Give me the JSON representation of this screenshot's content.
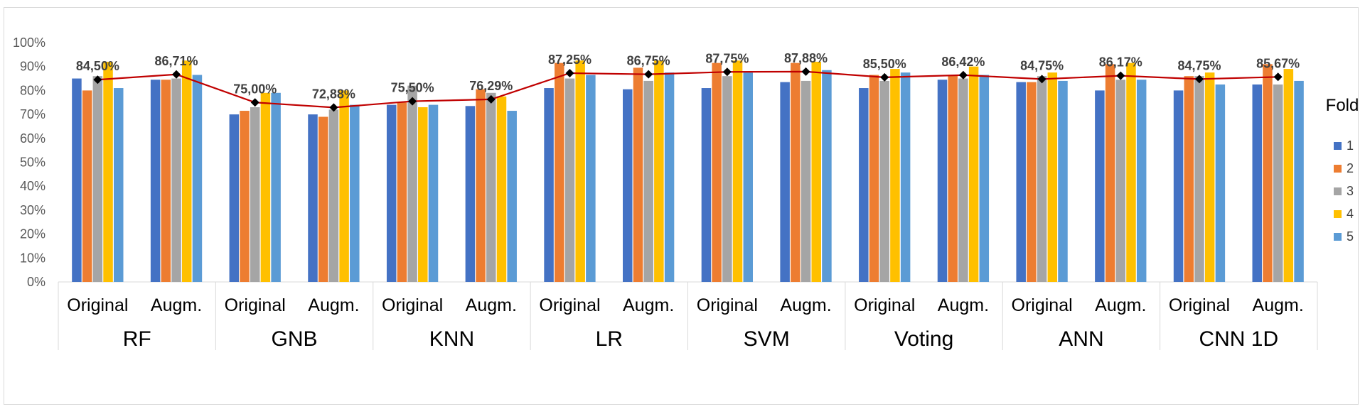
{
  "chart_data": {
    "type": "bar",
    "title": "",
    "xlabel": "",
    "ylabel": "",
    "ylim": [
      0,
      1
    ],
    "yticks": [
      "0%",
      "10%",
      "20%",
      "30%",
      "40%",
      "50%",
      "60%",
      "70%",
      "80%",
      "90%",
      "100%"
    ],
    "grid": false,
    "legend": {
      "title": "Fold",
      "position": "right"
    },
    "groups": [
      {
        "label": "RF",
        "subcategories": [
          "Original",
          "Augm."
        ]
      },
      {
        "label": "GNB",
        "subcategories": [
          "Original",
          "Augm."
        ]
      },
      {
        "label": "KNN",
        "subcategories": [
          "Original",
          "Augm."
        ]
      },
      {
        "label": "LR",
        "subcategories": [
          "Original",
          "Augm."
        ]
      },
      {
        "label": "SVM",
        "subcategories": [
          "Original",
          "Augm."
        ]
      },
      {
        "label": "Voting",
        "subcategories": [
          "Original",
          "Augm."
        ]
      },
      {
        "label": "ANN",
        "subcategories": [
          "Original",
          "Augm."
        ]
      },
      {
        "label": "CNN 1D",
        "subcategories": [
          "Original",
          "Augm."
        ]
      }
    ],
    "series": [
      {
        "name": "1",
        "color": "#4472c4",
        "values": [
          0.85,
          0.845,
          0.7,
          0.7,
          0.74,
          0.735,
          0.81,
          0.805,
          0.81,
          0.835,
          0.81,
          0.845,
          0.835,
          0.8,
          0.8,
          0.825
        ]
      },
      {
        "name": "2",
        "color": "#ed7d31",
        "values": [
          0.8,
          0.845,
          0.715,
          0.69,
          0.75,
          0.805,
          0.915,
          0.895,
          0.915,
          0.915,
          0.865,
          0.865,
          0.835,
          0.91,
          0.86,
          0.91
        ]
      },
      {
        "name": "3",
        "color": "#a5a5a5",
        "values": [
          0.86,
          0.85,
          0.73,
          0.72,
          0.82,
          0.79,
          0.85,
          0.84,
          0.86,
          0.84,
          0.84,
          0.85,
          0.86,
          0.845,
          0.86,
          0.825
        ]
      },
      {
        "name": "4",
        "color": "#ffc000",
        "values": [
          0.92,
          0.925,
          0.79,
          0.8,
          0.73,
          0.775,
          0.925,
          0.925,
          0.925,
          0.92,
          0.89,
          0.9,
          0.875,
          0.915,
          0.875,
          0.89
        ]
      },
      {
        "name": "5",
        "color": "#5b9bd5",
        "values": [
          0.81,
          0.865,
          0.79,
          0.74,
          0.74,
          0.715,
          0.865,
          0.875,
          0.875,
          0.885,
          0.875,
          0.865,
          0.84,
          0.845,
          0.825,
          0.84
        ]
      }
    ],
    "average_line": {
      "color": "#c00000",
      "values": [
        0.845,
        0.8671,
        0.75,
        0.7288,
        0.755,
        0.7629,
        0.8725,
        0.8675,
        0.8775,
        0.8788,
        0.855,
        0.8642,
        0.8475,
        0.8617,
        0.8475,
        0.8567
      ],
      "labels": [
        "84,50%",
        "86,71%",
        "75,00%",
        "72,88%",
        "75,50%",
        "76,29%",
        "87,25%",
        "86,75%",
        "87,75%",
        "87,88%",
        "85,50%",
        "86,42%",
        "84,75%",
        "86,17%",
        "84,75%",
        "85,67%"
      ]
    }
  }
}
